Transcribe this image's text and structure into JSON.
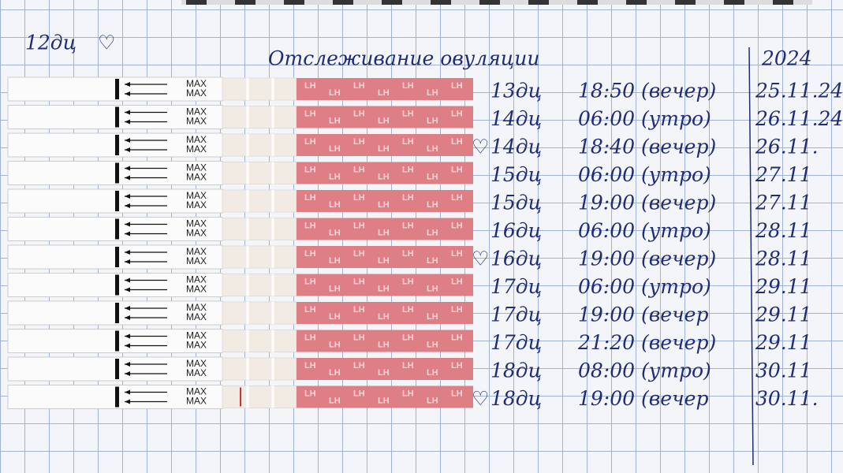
{
  "header": {
    "note": "12дц",
    "title": "Отслеживание овуляции",
    "year": "2024"
  },
  "strip": {
    "label": "MAX",
    "wrapper_label": "LH"
  },
  "rows": [
    {
      "day": "13дц",
      "time": "18:50 (вечер)",
      "date": "25.11.24",
      "heart": false
    },
    {
      "day": "14дц",
      "time": "06:00 (утро)",
      "date": "26.11.24",
      "heart": false
    },
    {
      "day": "14дц",
      "time": "18:40 (вечер)",
      "date": "26.11.",
      "heart": true
    },
    {
      "day": "15дц",
      "time": "06:00 (утро)",
      "date": "27.11",
      "heart": false
    },
    {
      "day": "15дц",
      "time": "19:00 (вечер)",
      "date": "27.11",
      "heart": false
    },
    {
      "day": "16дц",
      "time": "06:00 (утро)",
      "date": "28.11",
      "heart": false
    },
    {
      "day": "16дц",
      "time": "19:00 (вечер)",
      "date": "28.11",
      "heart": true
    },
    {
      "day": "17дц",
      "time": "06:00 (утро)",
      "date": "29.11",
      "heart": false
    },
    {
      "day": "17дц",
      "time": "19:00 (вечер",
      "date": "29.11",
      "heart": false
    },
    {
      "day": "17дц",
      "time": "21:20 (вечер)",
      "date": "29.11",
      "heart": false
    },
    {
      "day": "18дц",
      "time": "08:00 (утро)",
      "date": "30.11",
      "heart": false
    },
    {
      "day": "18дц",
      "time": "19:00 (вечер",
      "date": "30.11.",
      "heart": true
    }
  ]
}
